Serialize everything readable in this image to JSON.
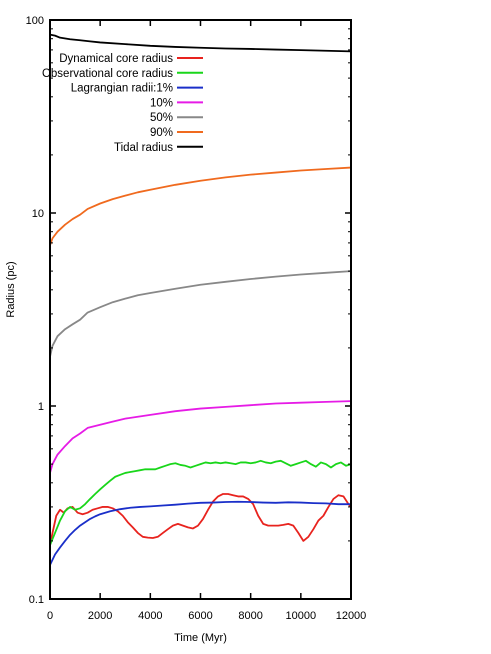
{
  "chart_data": {
    "type": "line",
    "xlabel": "Time (Myr)",
    "ylabel": "Radius (pc)",
    "xlim": [
      0,
      12000
    ],
    "ylim": [
      0.1,
      100
    ],
    "yscale": "log",
    "x_ticks": [
      0,
      2000,
      4000,
      6000,
      8000,
      10000,
      12000
    ],
    "y_ticks": [
      0.1,
      1,
      10,
      100
    ],
    "legend_placement": "top-left",
    "grid": false,
    "series": [
      {
        "name": "Dynamical core radius",
        "color": "#e8231e",
        "points": [
          [
            0,
            0.19
          ],
          [
            100,
            0.22
          ],
          [
            250,
            0.27
          ],
          [
            400,
            0.29
          ],
          [
            550,
            0.28
          ],
          [
            700,
            0.295
          ],
          [
            900,
            0.3
          ],
          [
            1100,
            0.28
          ],
          [
            1300,
            0.275
          ],
          [
            1500,
            0.28
          ],
          [
            1700,
            0.29
          ],
          [
            1900,
            0.295
          ],
          [
            2100,
            0.3
          ],
          [
            2300,
            0.3
          ],
          [
            2500,
            0.295
          ],
          [
            2700,
            0.285
          ],
          [
            2900,
            0.27
          ],
          [
            3100,
            0.25
          ],
          [
            3300,
            0.235
          ],
          [
            3500,
            0.22
          ],
          [
            3700,
            0.21
          ],
          [
            3900,
            0.208
          ],
          [
            4100,
            0.207
          ],
          [
            4300,
            0.21
          ],
          [
            4500,
            0.22
          ],
          [
            4700,
            0.23
          ],
          [
            4900,
            0.24
          ],
          [
            5100,
            0.245
          ],
          [
            5300,
            0.24
          ],
          [
            5500,
            0.235
          ],
          [
            5700,
            0.232
          ],
          [
            5900,
            0.24
          ],
          [
            6100,
            0.26
          ],
          [
            6300,
            0.29
          ],
          [
            6500,
            0.32
          ],
          [
            6700,
            0.34
          ],
          [
            6900,
            0.35
          ],
          [
            7100,
            0.35
          ],
          [
            7300,
            0.345
          ],
          [
            7500,
            0.34
          ],
          [
            7700,
            0.34
          ],
          [
            7900,
            0.33
          ],
          [
            8100,
            0.31
          ],
          [
            8300,
            0.27
          ],
          [
            8500,
            0.245
          ],
          [
            8700,
            0.24
          ],
          [
            8900,
            0.24
          ],
          [
            9100,
            0.24
          ],
          [
            9300,
            0.242
          ],
          [
            9500,
            0.245
          ],
          [
            9700,
            0.24
          ],
          [
            9900,
            0.22
          ],
          [
            10100,
            0.2
          ],
          [
            10300,
            0.21
          ],
          [
            10500,
            0.23
          ],
          [
            10700,
            0.255
          ],
          [
            10900,
            0.27
          ],
          [
            11100,
            0.3
          ],
          [
            11300,
            0.33
          ],
          [
            11500,
            0.345
          ],
          [
            11700,
            0.34
          ],
          [
            11800,
            0.325
          ],
          [
            11900,
            0.31
          ],
          [
            12000,
            0.3
          ]
        ]
      },
      {
        "name": "Observational core radius",
        "color": "#19d61a",
        "points": [
          [
            0,
            0.19
          ],
          [
            200,
            0.22
          ],
          [
            400,
            0.255
          ],
          [
            600,
            0.285
          ],
          [
            800,
            0.3
          ],
          [
            1000,
            0.29
          ],
          [
            1200,
            0.295
          ],
          [
            1400,
            0.31
          ],
          [
            1600,
            0.33
          ],
          [
            1800,
            0.35
          ],
          [
            2000,
            0.37
          ],
          [
            2200,
            0.39
          ],
          [
            2400,
            0.41
          ],
          [
            2600,
            0.43
          ],
          [
            2800,
            0.44
          ],
          [
            3000,
            0.45
          ],
          [
            3200,
            0.455
          ],
          [
            3400,
            0.46
          ],
          [
            3600,
            0.465
          ],
          [
            3800,
            0.47
          ],
          [
            4000,
            0.47
          ],
          [
            4200,
            0.47
          ],
          [
            4400,
            0.48
          ],
          [
            4600,
            0.49
          ],
          [
            4800,
            0.5
          ],
          [
            5000,
            0.505
          ],
          [
            5200,
            0.495
          ],
          [
            5400,
            0.49
          ],
          [
            5600,
            0.48
          ],
          [
            5800,
            0.49
          ],
          [
            6000,
            0.5
          ],
          [
            6200,
            0.51
          ],
          [
            6400,
            0.505
          ],
          [
            6600,
            0.51
          ],
          [
            6800,
            0.505
          ],
          [
            7000,
            0.51
          ],
          [
            7200,
            0.505
          ],
          [
            7400,
            0.5
          ],
          [
            7600,
            0.51
          ],
          [
            7800,
            0.51
          ],
          [
            8000,
            0.505
          ],
          [
            8200,
            0.51
          ],
          [
            8400,
            0.52
          ],
          [
            8600,
            0.51
          ],
          [
            8800,
            0.505
          ],
          [
            9000,
            0.515
          ],
          [
            9200,
            0.52
          ],
          [
            9400,
            0.505
          ],
          [
            9600,
            0.49
          ],
          [
            9800,
            0.5
          ],
          [
            10000,
            0.51
          ],
          [
            10200,
            0.52
          ],
          [
            10400,
            0.5
          ],
          [
            10600,
            0.485
          ],
          [
            10800,
            0.51
          ],
          [
            11000,
            0.5
          ],
          [
            11200,
            0.48
          ],
          [
            11400,
            0.5
          ],
          [
            11600,
            0.51
          ],
          [
            11800,
            0.49
          ],
          [
            12000,
            0.5
          ]
        ]
      },
      {
        "name": "Lagrangian radii:1%",
        "color": "#1a2fc9",
        "points": [
          [
            0,
            0.15
          ],
          [
            200,
            0.17
          ],
          [
            400,
            0.185
          ],
          [
            600,
            0.2
          ],
          [
            800,
            0.215
          ],
          [
            1000,
            0.228
          ],
          [
            1200,
            0.24
          ],
          [
            1400,
            0.25
          ],
          [
            1600,
            0.26
          ],
          [
            1800,
            0.268
          ],
          [
            2000,
            0.275
          ],
          [
            2400,
            0.285
          ],
          [
            2800,
            0.292
          ],
          [
            3200,
            0.297
          ],
          [
            3600,
            0.3
          ],
          [
            4000,
            0.302
          ],
          [
            4500,
            0.305
          ],
          [
            5000,
            0.308
          ],
          [
            5500,
            0.312
          ],
          [
            6000,
            0.315
          ],
          [
            6500,
            0.316
          ],
          [
            7000,
            0.318
          ],
          [
            7500,
            0.319
          ],
          [
            8000,
            0.318
          ],
          [
            8500,
            0.316
          ],
          [
            9000,
            0.315
          ],
          [
            9500,
            0.317
          ],
          [
            10000,
            0.316
          ],
          [
            10500,
            0.314
          ],
          [
            11000,
            0.313
          ],
          [
            11500,
            0.31
          ],
          [
            12000,
            0.31
          ]
        ]
      },
      {
        "name": "10%",
        "color": "#e61be6",
        "points": [
          [
            0,
            0.45
          ],
          [
            100,
            0.5
          ],
          [
            300,
            0.56
          ],
          [
            600,
            0.62
          ],
          [
            900,
            0.68
          ],
          [
            1200,
            0.72
          ],
          [
            1500,
            0.77
          ],
          [
            2000,
            0.8
          ],
          [
            2500,
            0.83
          ],
          [
            3000,
            0.86
          ],
          [
            3500,
            0.88
          ],
          [
            4000,
            0.9
          ],
          [
            5000,
            0.94
          ],
          [
            6000,
            0.97
          ],
          [
            7000,
            0.99
          ],
          [
            8000,
            1.01
          ],
          [
            9000,
            1.03
          ],
          [
            10000,
            1.04
          ],
          [
            11000,
            1.05
          ],
          [
            12000,
            1.06
          ]
        ]
      },
      {
        "name": "50%",
        "color": "#888888",
        "points": [
          [
            0,
            1.8
          ],
          [
            100,
            2.05
          ],
          [
            300,
            2.3
          ],
          [
            600,
            2.5
          ],
          [
            900,
            2.65
          ],
          [
            1200,
            2.8
          ],
          [
            1500,
            3.05
          ],
          [
            2000,
            3.25
          ],
          [
            2500,
            3.45
          ],
          [
            3000,
            3.6
          ],
          [
            3500,
            3.75
          ],
          [
            4000,
            3.85
          ],
          [
            5000,
            4.05
          ],
          [
            6000,
            4.25
          ],
          [
            7000,
            4.4
          ],
          [
            8000,
            4.55
          ],
          [
            9000,
            4.68
          ],
          [
            10000,
            4.8
          ],
          [
            11000,
            4.9
          ],
          [
            12000,
            5.0
          ]
        ]
      },
      {
        "name": "90%",
        "color": "#f06a1e",
        "points": [
          [
            0,
            6.8
          ],
          [
            100,
            7.4
          ],
          [
            300,
            8.0
          ],
          [
            600,
            8.7
          ],
          [
            900,
            9.3
          ],
          [
            1200,
            9.8
          ],
          [
            1500,
            10.5
          ],
          [
            2000,
            11.2
          ],
          [
            2500,
            11.8
          ],
          [
            3000,
            12.3
          ],
          [
            3500,
            12.8
          ],
          [
            4000,
            13.2
          ],
          [
            5000,
            14.0
          ],
          [
            6000,
            14.7
          ],
          [
            7000,
            15.3
          ],
          [
            8000,
            15.8
          ],
          [
            9000,
            16.2
          ],
          [
            10000,
            16.6
          ],
          [
            11000,
            16.9
          ],
          [
            12000,
            17.2
          ]
        ]
      },
      {
        "name": "Tidal radius",
        "color": "#000000",
        "points": [
          [
            0,
            84
          ],
          [
            200,
            83
          ],
          [
            400,
            81
          ],
          [
            800,
            79.5
          ],
          [
            1200,
            78.5
          ],
          [
            1600,
            77.5
          ],
          [
            2000,
            76.5
          ],
          [
            3000,
            75
          ],
          [
            4000,
            73.5
          ],
          [
            5000,
            72.5
          ],
          [
            6000,
            71.8
          ],
          [
            7000,
            71.2
          ],
          [
            8000,
            70.8
          ],
          [
            9000,
            70.3
          ],
          [
            10000,
            69.8
          ],
          [
            11000,
            69.3
          ],
          [
            12000,
            68.8
          ]
        ]
      }
    ]
  }
}
